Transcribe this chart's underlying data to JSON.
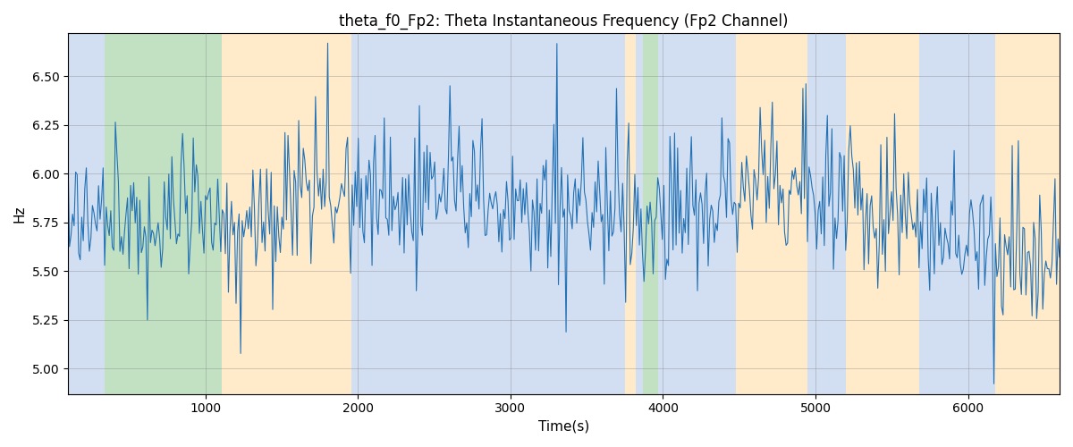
{
  "title": "theta_f0_Fp2: Theta Instantaneous Frequency (Fp2 Channel)",
  "xlabel": "Time(s)",
  "ylabel": "Hz",
  "xlim": [
    100,
    6600
  ],
  "ylim": [
    4.87,
    6.72
  ],
  "yticks": [
    5.0,
    5.25,
    5.5,
    5.75,
    6.0,
    6.25,
    6.5
  ],
  "line_color": "#2271b5",
  "line_width": 0.8,
  "background_regions": [
    {
      "xstart": 100,
      "xend": 340,
      "color": "#aec6e8",
      "alpha": 0.55
    },
    {
      "xstart": 340,
      "xend": 1110,
      "color": "#90c990",
      "alpha": 0.55
    },
    {
      "xstart": 1110,
      "xend": 1960,
      "color": "#ffd9a0",
      "alpha": 0.55
    },
    {
      "xstart": 1960,
      "xend": 3750,
      "color": "#aec6e8",
      "alpha": 0.55
    },
    {
      "xstart": 3750,
      "xend": 3820,
      "color": "#ffd9a0",
      "alpha": 0.55
    },
    {
      "xstart": 3820,
      "xend": 3870,
      "color": "#aec6e8",
      "alpha": 0.55
    },
    {
      "xstart": 3870,
      "xend": 3970,
      "color": "#90c990",
      "alpha": 0.55
    },
    {
      "xstart": 3970,
      "xend": 4480,
      "color": "#aec6e8",
      "alpha": 0.55
    },
    {
      "xstart": 4480,
      "xend": 4950,
      "color": "#ffd9a0",
      "alpha": 0.55
    },
    {
      "xstart": 4950,
      "xend": 5200,
      "color": "#aec6e8",
      "alpha": 0.55
    },
    {
      "xstart": 5200,
      "xend": 5680,
      "color": "#ffd9a0",
      "alpha": 0.55
    },
    {
      "xstart": 5680,
      "xend": 6180,
      "color": "#aec6e8",
      "alpha": 0.55
    },
    {
      "xstart": 6180,
      "xend": 6600,
      "color": "#ffd9a0",
      "alpha": 0.55
    }
  ],
  "seed": 12,
  "n_points": 650,
  "base_freq": 5.82,
  "noise_std": 0.18,
  "figsize": [
    12.0,
    5.0
  ],
  "dpi": 100
}
